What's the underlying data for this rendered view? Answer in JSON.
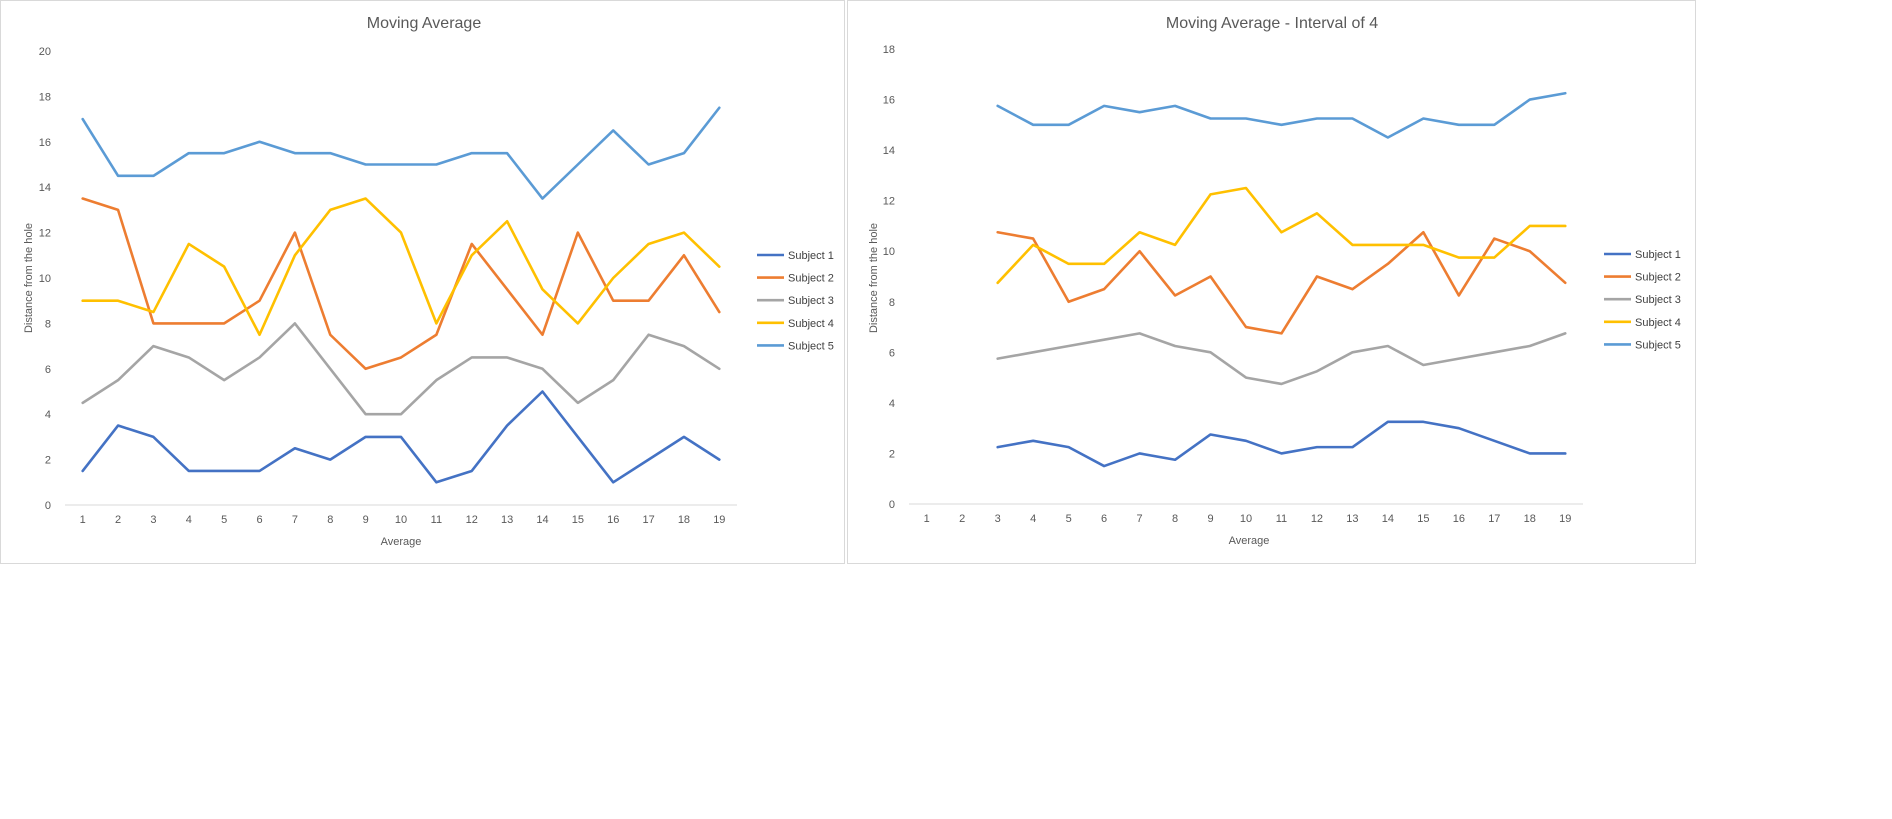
{
  "chart_data": [
    {
      "type": "line",
      "title": "Moving Average",
      "xlabel": "Average",
      "ylabel": "Distance from the hole",
      "ylim": [
        0,
        20
      ],
      "yticks": [
        0,
        2,
        4,
        6,
        8,
        10,
        12,
        14,
        16,
        18,
        20
      ],
      "x": [
        1,
        2,
        3,
        4,
        5,
        6,
        7,
        8,
        9,
        10,
        11,
        12,
        13,
        14,
        15,
        16,
        17,
        18,
        19
      ],
      "legend_position": "right",
      "grid": false,
      "series": [
        {
          "name": "Subject 1",
          "color": "#4472C4",
          "values": [
            1.5,
            3.5,
            3,
            1.5,
            1.5,
            1.5,
            2.5,
            2,
            3,
            3,
            1,
            1.5,
            3.5,
            5,
            3,
            1,
            2,
            3,
            2
          ]
        },
        {
          "name": "Subject 2",
          "color": "#ED7D31",
          "values": [
            13.5,
            13,
            8,
            8,
            8,
            9,
            12,
            7.5,
            6,
            6.5,
            7.5,
            11.5,
            9.5,
            7.5,
            12,
            9,
            9,
            11,
            8.5
          ]
        },
        {
          "name": "Subject 3",
          "color": "#A5A5A5",
          "values": [
            4.5,
            5.5,
            7,
            6.5,
            5.5,
            6.5,
            8,
            6,
            4,
            4,
            5.5,
            6.5,
            6.5,
            6,
            4.5,
            5.5,
            7.5,
            7,
            6
          ]
        },
        {
          "name": "Subject 4",
          "color": "#FFC000",
          "values": [
            9,
            9,
            8.5,
            11.5,
            10.5,
            7.5,
            11,
            13,
            13.5,
            12,
            8,
            11,
            12.5,
            9.5,
            8,
            10,
            11.5,
            12,
            10.5
          ]
        },
        {
          "name": "Subject 5",
          "color": "#5B9BD5",
          "values": [
            17,
            14.5,
            14.5,
            15.5,
            15.5,
            16,
            15.5,
            15.5,
            15,
            15,
            15,
            15.5,
            15.5,
            13.5,
            15,
            16.5,
            15,
            15.5,
            17.5
          ]
        }
      ]
    },
    {
      "type": "line",
      "title": "Moving Average - Interval of 4",
      "xlabel": "Average",
      "ylabel": "Distance from the hole",
      "ylim": [
        0,
        18
      ],
      "yticks": [
        0,
        2,
        4,
        6,
        8,
        10,
        12,
        14,
        16,
        18
      ],
      "x": [
        1,
        2,
        3,
        4,
        5,
        6,
        7,
        8,
        9,
        10,
        11,
        12,
        13,
        14,
        15,
        16,
        17,
        18,
        19
      ],
      "legend_position": "right",
      "grid": false,
      "series": [
        {
          "name": "Subject 1",
          "color": "#4472C4",
          "values": [
            null,
            null,
            2.25,
            2.5,
            2.25,
            1.5,
            2,
            1.75,
            2.75,
            2.5,
            2,
            2.25,
            2.25,
            3.25,
            3.25,
            3,
            2.5,
            2,
            2
          ]
        },
        {
          "name": "Subject 2",
          "color": "#ED7D31",
          "values": [
            null,
            null,
            10.75,
            10.5,
            8,
            8.5,
            10,
            8.25,
            9,
            7,
            6.75,
            9,
            8.5,
            9.5,
            10.75,
            8.25,
            10.5,
            10,
            8.75
          ]
        },
        {
          "name": "Subject 3",
          "color": "#A5A5A5",
          "values": [
            null,
            null,
            5.75,
            6,
            6.25,
            6.5,
            6.75,
            6.25,
            6,
            5,
            4.75,
            5.25,
            6,
            6.25,
            5.5,
            5.75,
            6,
            6.25,
            6.75
          ]
        },
        {
          "name": "Subject 4",
          "color": "#FFC000",
          "values": [
            null,
            null,
            8.75,
            10.25,
            9.5,
            9.5,
            10.75,
            10.25,
            12.25,
            12.5,
            10.75,
            11.5,
            10.25,
            10.25,
            10.25,
            9.75,
            9.75,
            11,
            11
          ]
        },
        {
          "name": "Subject 5",
          "color": "#5B9BD5",
          "values": [
            null,
            null,
            15.75,
            15,
            15,
            15.75,
            15.5,
            15.75,
            15.25,
            15.25,
            15,
            15.25,
            15.25,
            14.5,
            15.25,
            15,
            15,
            16,
            16.25
          ]
        }
      ]
    }
  ]
}
